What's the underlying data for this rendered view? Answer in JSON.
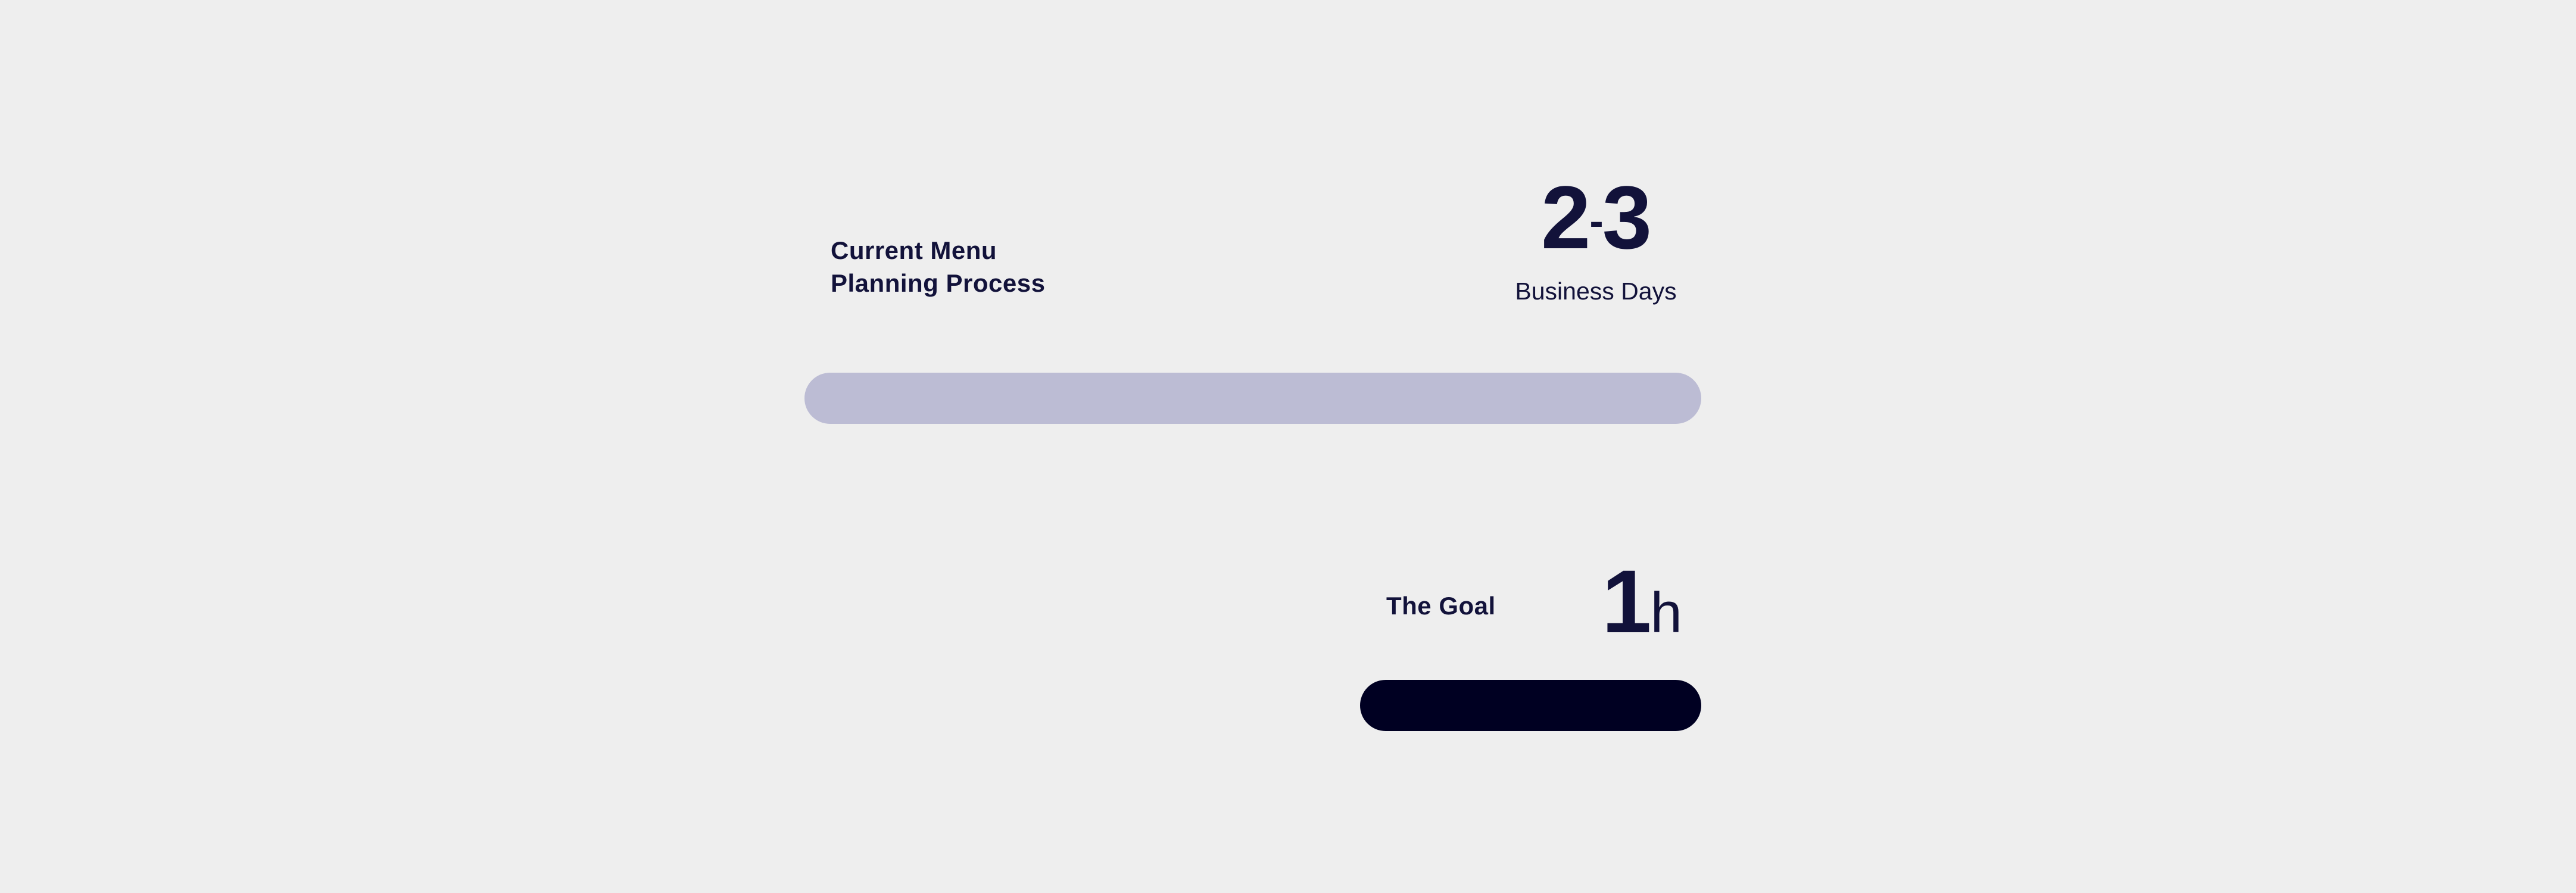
{
  "current": {
    "label_line1": "Current Menu",
    "label_line2": "Planning Process",
    "value_start": "2",
    "value_sep": "-",
    "value_end": "3",
    "unit": "Business Days",
    "bar_color": "#bcbcd4"
  },
  "goal": {
    "label": "The Goal",
    "value": "1",
    "unit": "h",
    "bar_color": "#000022"
  },
  "colors": {
    "background": "#eeeeee",
    "text": "#12123a"
  }
}
